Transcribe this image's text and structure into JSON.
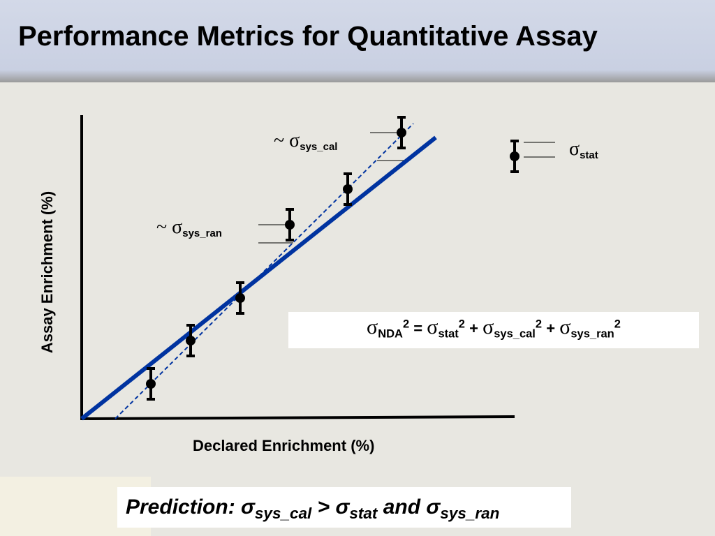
{
  "header": {
    "title": "Performance Metrics for Quantitative Assay"
  },
  "axes": {
    "y_label": "Assay Enrichment (%)",
    "x_label": "Declared Enrichment (%)"
  },
  "annotations": [
    {
      "symbol": "~ σ",
      "subscript": "sys_cal"
    },
    {
      "symbol": "~ σ",
      "subscript": "sys_ran"
    },
    {
      "symbol": "σ",
      "subscript": "stat"
    }
  ],
  "equation": {
    "terms": [
      {
        "symbol": "σ",
        "subscript": "NDA",
        "superscript": "2"
      },
      {
        "symbol": "σ",
        "subscript": "stat",
        "superscript": "2"
      },
      {
        "symbol": "σ",
        "subscript": "sys_cal",
        "superscript": "2"
      },
      {
        "symbol": "σ",
        "subscript": "sys_ran",
        "superscript": "2"
      }
    ],
    "operators": [
      "=",
      "+",
      "+"
    ]
  },
  "prediction": {
    "segments": [
      {
        "text": "Prediction: σ",
        "subscript": "sys_cal"
      },
      {
        "text": "> σ",
        "subscript": "stat"
      },
      {
        "text": "and σ",
        "subscript": "sys_ran"
      }
    ]
  }
}
